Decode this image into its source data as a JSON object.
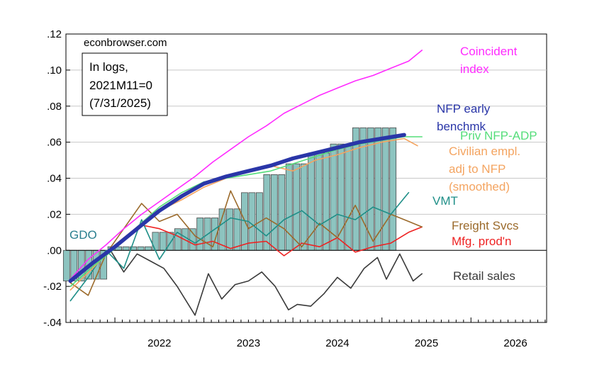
{
  "chart_data": {
    "type": "line",
    "source_label": "econbrowser.com",
    "note_lines": [
      "In logs,",
      "2021M11=0",
      "(7/31/2025)"
    ],
    "ylim": [
      -0.04,
      0.12
    ],
    "xlim": [
      2021.45,
      2026.85
    ],
    "y_ticks": [
      -0.04,
      -0.02,
      0.0,
      0.02,
      0.04,
      0.06,
      0.08,
      0.1,
      0.12
    ],
    "y_tick_labels": [
      "-.04",
      "-.02",
      ".00",
      ".02",
      ".04",
      ".06",
      ".08",
      ".10",
      ".12"
    ],
    "x_ticks": [
      2022,
      2023,
      2024,
      2025,
      2026
    ],
    "x_tick_labels": [
      "2022",
      "2023",
      "2024",
      "2025",
      "2026"
    ],
    "colors": {
      "gdo": "#8dc4c0",
      "gdo_line": "#2a7f8f",
      "coincident": "#ff2bff",
      "nfp": "#2a36a8",
      "priv": "#55dd7a",
      "civ": "#f4a460",
      "vmt": "#1f8f88",
      "freight": "#9b6a2b",
      "mfg": "#ee2222",
      "retail": "#3a3a3a"
    },
    "series": [
      {
        "name": "GDO",
        "label": [
          "GDO"
        ],
        "kind": "bar",
        "color_key": "gdo",
        "x": [
          2021.54,
          2021.79,
          2022.04,
          2022.29,
          2022.54,
          2022.79,
          2023.04,
          2023.29,
          2023.54,
          2023.79,
          2024.04,
          2024.29,
          2024.54,
          2024.79,
          2025.04
        ],
        "values": [
          -0.017,
          -0.016,
          0.002,
          0.002,
          0.01,
          0.012,
          0.018,
          0.023,
          0.032,
          0.042,
          0.048,
          0.054,
          0.059,
          0.068,
          0.068
        ]
      },
      {
        "name": "Coincident index",
        "label": [
          "Coincident",
          "index"
        ],
        "color_key": "coincident",
        "x": [
          2021.5,
          2021.7,
          2021.9,
          2022.1,
          2022.3,
          2022.5,
          2022.7,
          2022.9,
          2023.1,
          2023.3,
          2023.5,
          2023.7,
          2023.9,
          2024.1,
          2024.3,
          2024.5,
          2024.7,
          2024.9,
          2025.1,
          2025.3,
          2025.45
        ],
        "values": [
          -0.016,
          -0.005,
          0.003,
          0.012,
          0.02,
          0.027,
          0.034,
          0.041,
          0.049,
          0.056,
          0.063,
          0.069,
          0.076,
          0.081,
          0.086,
          0.09,
          0.094,
          0.097,
          0.101,
          0.105,
          0.111
        ]
      },
      {
        "name": "NFP early benchmk",
        "label": [
          "NFP early",
          "benchmk"
        ],
        "color_key": "nfp",
        "x": [
          2021.5,
          2021.75,
          2022.0,
          2022.25,
          2022.5,
          2022.75,
          2023.0,
          2023.25,
          2023.5,
          2023.75,
          2024.0,
          2024.25,
          2024.5,
          2024.75,
          2025.0,
          2025.25
        ],
        "values": [
          -0.017,
          -0.007,
          0.002,
          0.012,
          0.022,
          0.03,
          0.037,
          0.041,
          0.044,
          0.047,
          0.051,
          0.054,
          0.057,
          0.06,
          0.062,
          0.064
        ]
      },
      {
        "name": "Priv NFP-ADP",
        "label": [
          "Priv NFP-ADP"
        ],
        "color_key": "priv",
        "x": [
          2021.5,
          2021.75,
          2022.0,
          2022.25,
          2022.5,
          2022.75,
          2023.0,
          2023.25,
          2023.5,
          2023.75,
          2024.0,
          2024.25,
          2024.5,
          2024.75,
          2025.0,
          2025.25,
          2025.45
        ],
        "values": [
          -0.02,
          -0.009,
          0.001,
          0.013,
          0.024,
          0.032,
          0.038,
          0.04,
          0.042,
          0.044,
          0.048,
          0.052,
          0.056,
          0.059,
          0.061,
          0.063,
          0.063
        ]
      },
      {
        "name": "Civilian empl. adj to NFP (smoothed)",
        "label": [
          "Civilian empl.",
          "adj to NFP",
          "(smoothed)"
        ],
        "color_key": "civ",
        "x": [
          2021.5,
          2021.75,
          2022.0,
          2022.25,
          2022.5,
          2022.75,
          2023.0,
          2023.25,
          2023.5,
          2023.75,
          2024.0,
          2024.25,
          2024.5,
          2024.75,
          2025.0,
          2025.25,
          2025.4
        ],
        "values": [
          -0.022,
          -0.01,
          0.003,
          0.013,
          0.022,
          0.028,
          0.035,
          0.04,
          0.044,
          0.047,
          0.044,
          0.05,
          0.053,
          0.057,
          0.06,
          0.062,
          0.058
        ]
      },
      {
        "name": "VMT",
        "label": [
          "VMT"
        ],
        "color_key": "vmt",
        "x": [
          2021.5,
          2021.7,
          2021.9,
          2022.1,
          2022.3,
          2022.5,
          2022.7,
          2022.9,
          2023.1,
          2023.3,
          2023.5,
          2023.7,
          2023.9,
          2024.1,
          2024.3,
          2024.5,
          2024.7,
          2024.9,
          2025.1,
          2025.3
        ],
        "values": [
          -0.028,
          -0.015,
          0.0,
          -0.01,
          0.017,
          -0.005,
          0.01,
          0.004,
          0.011,
          0.018,
          0.016,
          0.008,
          0.017,
          0.022,
          0.014,
          0.02,
          0.017,
          0.024,
          0.02,
          0.032
        ]
      },
      {
        "name": "Freight Svcs",
        "label": [
          "Freight Svcs"
        ],
        "color_key": "freight",
        "x": [
          2021.5,
          2021.7,
          2021.9,
          2022.1,
          2022.3,
          2022.5,
          2022.7,
          2022.9,
          2023.1,
          2023.3,
          2023.5,
          2023.7,
          2023.9,
          2024.1,
          2024.3,
          2024.5,
          2024.7,
          2024.9,
          2025.1,
          2025.3,
          2025.45
        ],
        "values": [
          -0.018,
          -0.025,
          -0.002,
          0.012,
          0.026,
          0.016,
          0.02,
          0.008,
          0.002,
          0.033,
          0.012,
          0.018,
          0.012,
          0.002,
          0.015,
          0.007,
          0.025,
          0.005,
          0.02,
          0.016,
          0.013
        ]
      },
      {
        "name": "Mfg. prod'n",
        "label": [
          "Mfg. prod'n"
        ],
        "color_key": "mfg",
        "x": [
          2021.5,
          2021.7,
          2021.9,
          2022.1,
          2022.3,
          2022.5,
          2022.7,
          2022.9,
          2023.1,
          2023.3,
          2023.5,
          2023.7,
          2023.9,
          2024.1,
          2024.3,
          2024.5,
          2024.7,
          2024.9,
          2025.1,
          2025.3,
          2025.45
        ],
        "values": [
          -0.017,
          -0.01,
          -0.002,
          0.006,
          0.014,
          0.012,
          0.008,
          0.003,
          0.005,
          0.001,
          0.004,
          0.005,
          -0.003,
          0.004,
          0.002,
          0.007,
          -0.001,
          0.002,
          0.004,
          0.01,
          0.013
        ]
      },
      {
        "name": "Retail sales",
        "label": [
          "Retail sales"
        ],
        "color_key": "retail",
        "x": [
          2021.95,
          2022.1,
          2022.25,
          2022.4,
          2022.55,
          2022.7,
          2022.9,
          2023.05,
          2023.2,
          2023.35,
          2023.5,
          2023.65,
          2023.8,
          2023.95,
          2024.05,
          2024.2,
          2024.35,
          2024.5,
          2024.65,
          2024.8,
          2024.95,
          2025.05,
          2025.2,
          2025.35,
          2025.45
        ],
        "values": [
          0.0,
          -0.012,
          -0.002,
          -0.006,
          -0.01,
          -0.02,
          -0.036,
          -0.013,
          -0.027,
          -0.019,
          -0.017,
          -0.012,
          -0.02,
          -0.033,
          -0.03,
          -0.031,
          -0.024,
          -0.015,
          -0.021,
          -0.01,
          -0.004,
          -0.016,
          -0.002,
          -0.017,
          -0.013
        ]
      }
    ]
  }
}
